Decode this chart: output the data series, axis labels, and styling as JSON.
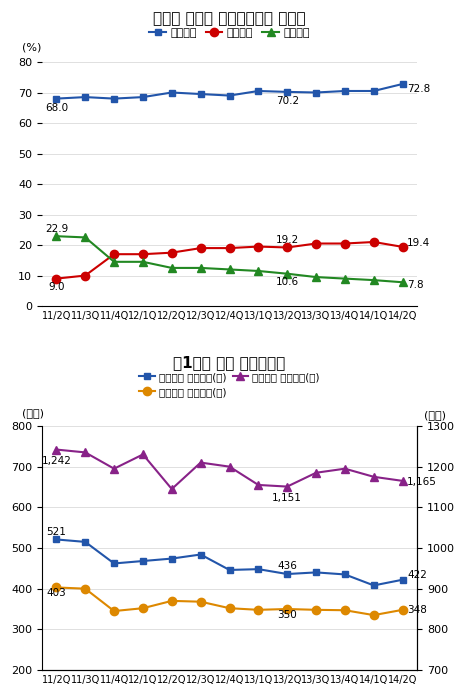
{
  "title1": "《카드 종류별 해외이용실적 비중》",
  "title2": "《1인당 카드 해외이용》",
  "x_labels": [
    "11/2Q",
    "11/3Q",
    "11/4Q",
    "12/1Q",
    "12/2Q",
    "12/3Q",
    "12/4Q",
    "13/1Q",
    "13/2Q",
    "13/3Q",
    "13/4Q",
    "14/1Q",
    "14/2Q"
  ],
  "credit_card": [
    68.0,
    68.5,
    68.0,
    68.5,
    70.0,
    69.5,
    69.0,
    70.5,
    70.2,
    70.0,
    70.5,
    70.5,
    72.8
  ],
  "check_card": [
    9.0,
    10.0,
    17.0,
    17.0,
    17.5,
    19.0,
    19.0,
    19.5,
    19.2,
    20.5,
    20.5,
    21.0,
    19.4
  ],
  "debit_card": [
    22.9,
    22.5,
    14.5,
    14.5,
    12.5,
    12.5,
    12.0,
    11.5,
    10.6,
    9.5,
    9.0,
    8.5,
    7.8
  ],
  "credit_color": "#2255aa",
  "check_color": "#cc0000",
  "debit_color": "#228822",
  "usage_total": [
    521,
    515,
    462,
    468,
    474,
    484,
    446,
    448,
    436,
    440,
    435,
    408,
    422
  ],
  "purchase": [
    403,
    400,
    345,
    352,
    370,
    368,
    352,
    348,
    350,
    348,
    347,
    335,
    348
  ],
  "cash": [
    1242,
    1235,
    1195,
    1230,
    1145,
    1210,
    1200,
    1155,
    1151,
    1185,
    1195,
    1175,
    1165
  ],
  "usage_color": "#2255aa",
  "purchase_color": "#dd8800",
  "cash_color": "#882288",
  "ylabel1": "(%)",
  "ylabel2_left": "(달러)",
  "ylabel2_right": "(달러)",
  "legend1_labels": [
    "신용카드",
    "체크카드",
    "직불카드"
  ],
  "legend2_labels": [
    "해외카드 이용실적(좌)",
    "해외카드 구매실적(좌)",
    "해외현금 인출실적(우)"
  ]
}
